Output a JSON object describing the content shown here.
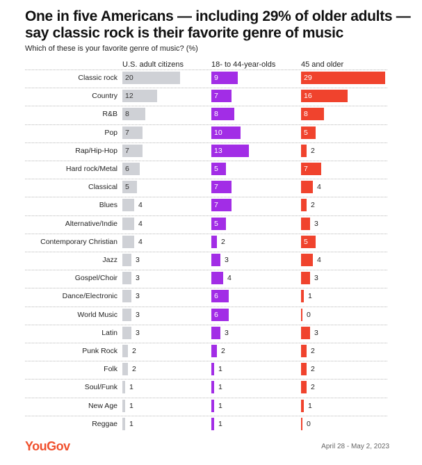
{
  "title": "One in five Americans — including 29% of older adults — say classic rock is their favorite genre of music",
  "subtitle": "Which of these is your favorite genre of music? (%)",
  "footer": {
    "logo": "YouGov",
    "date": "April 28 - May 2, 2023"
  },
  "colors": {
    "us_adults": "#cfd1d6",
    "age_18_44": "#a22de6",
    "age_45_older": "#f0432d"
  },
  "chart_data": {
    "type": "bar",
    "orientation": "horizontal",
    "title": "One in five Americans — including 29% of older adults — say classic rock is their favorite genre of music",
    "subtitle": "Which of these is your favorite genre of music? (%)",
    "categories": [
      "Classic rock",
      "Country",
      "R&B",
      "Pop",
      "Rap/Hip-Hop",
      "Hard rock/Metal",
      "Classical",
      "Blues",
      "Alternative/Indie",
      "Contemporary Christian",
      "Jazz",
      "Gospel/Choir",
      "Dance/Electronic",
      "World Music",
      "Latin",
      "Punk Rock",
      "Folk",
      "Soul/Funk",
      "New Age",
      "Reggae"
    ],
    "series": [
      {
        "name": "U.S. adult citizens",
        "color": "#cfd1d6",
        "values": [
          20,
          12,
          8,
          7,
          7,
          6,
          5,
          4,
          4,
          4,
          3,
          3,
          3,
          3,
          3,
          2,
          2,
          1,
          1,
          1
        ]
      },
      {
        "name": "18- to 44-year-olds",
        "color": "#a22de6",
        "values": [
          9,
          7,
          8,
          10,
          13,
          5,
          7,
          7,
          5,
          2,
          3,
          4,
          6,
          6,
          3,
          2,
          1,
          1,
          1,
          1
        ]
      },
      {
        "name": "45 and older",
        "color": "#f0432d",
        "values": [
          29,
          16,
          8,
          5,
          2,
          7,
          4,
          2,
          3,
          5,
          4,
          3,
          1,
          0,
          3,
          2,
          2,
          2,
          1,
          0
        ]
      }
    ],
    "xlim": [
      0,
      29
    ],
    "grid": false,
    "legend": "column headers"
  }
}
